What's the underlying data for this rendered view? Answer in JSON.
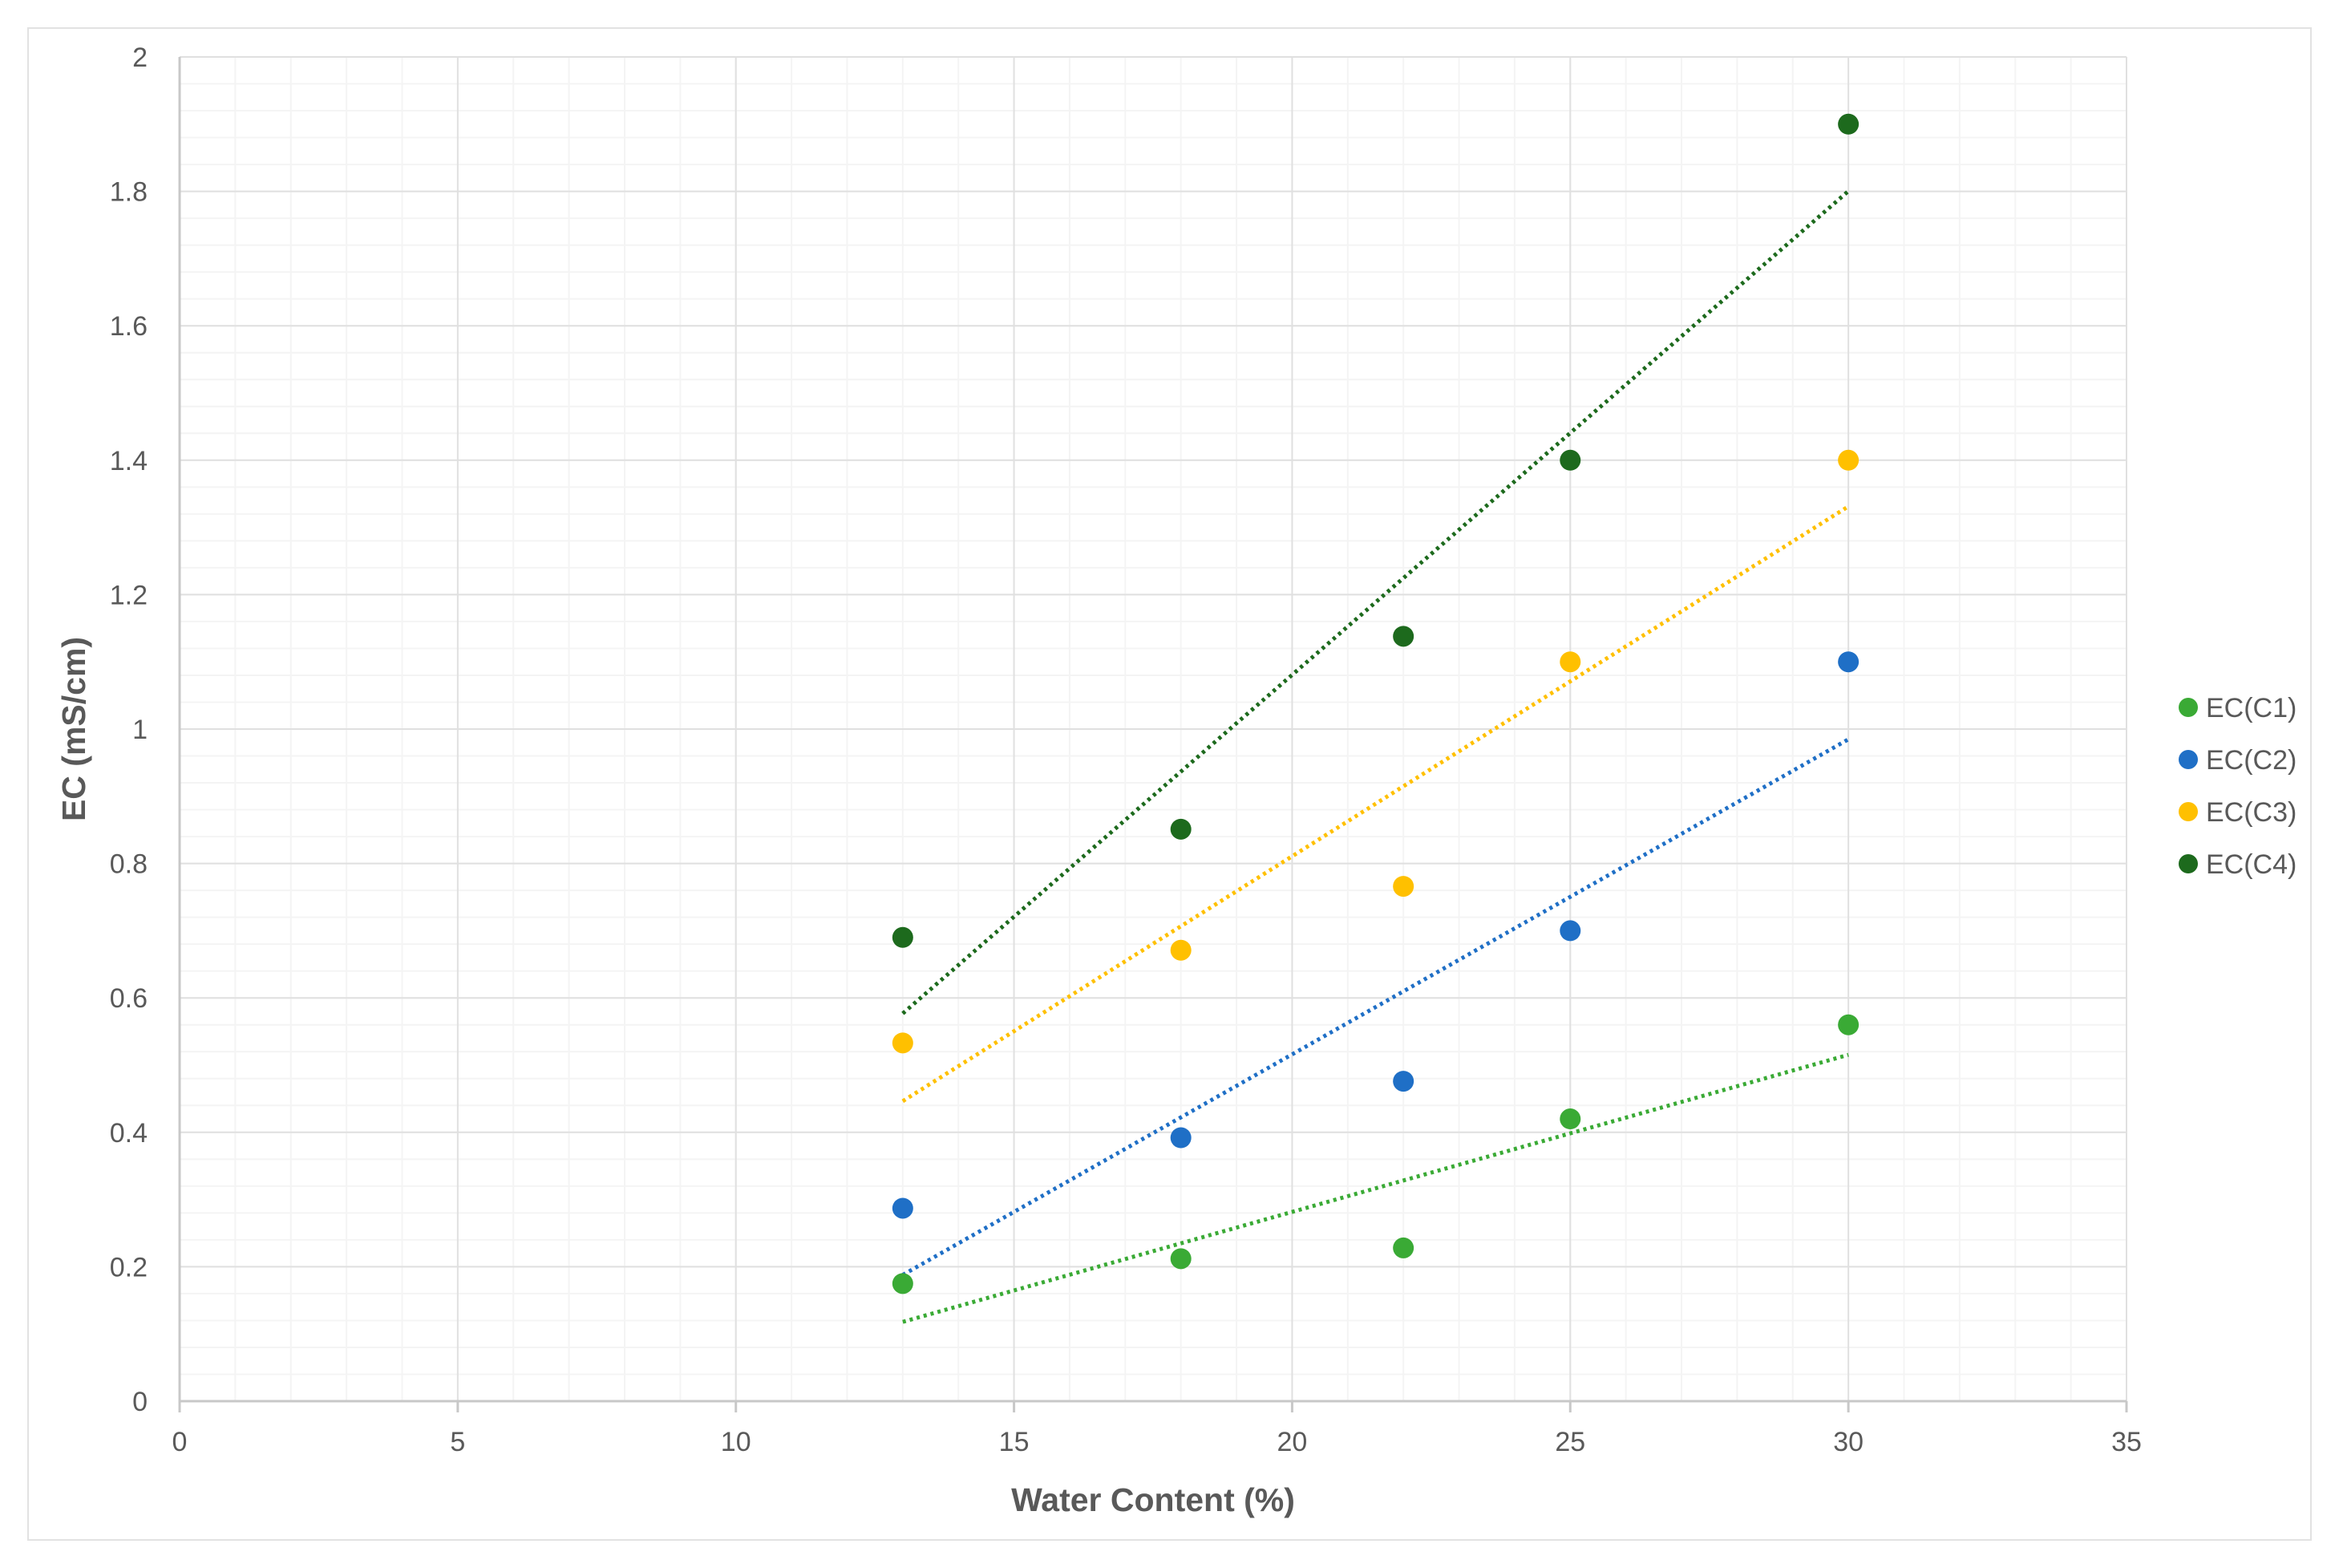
{
  "chart_data": {
    "type": "scatter",
    "xlabel": "Water Content (%)",
    "ylabel": "EC (mS/cm)",
    "xlim": [
      0,
      35
    ],
    "ylim": [
      0,
      2
    ],
    "x_ticks": [
      0,
      5,
      10,
      15,
      20,
      25,
      30,
      35
    ],
    "y_ticks": [
      0,
      0.2,
      0.4,
      0.6,
      0.8,
      1,
      1.2,
      1.4,
      1.6,
      1.8,
      2
    ],
    "x_tick_labels": [
      "0",
      "5",
      "10",
      "15",
      "20",
      "25",
      "30",
      "35"
    ],
    "y_tick_labels": [
      "0",
      "0.2",
      "0.4",
      "0.6",
      "0.8",
      "1",
      "1.2",
      "1.4",
      "1.6",
      "1.8",
      "2"
    ],
    "grid": true,
    "minor_grid": true,
    "legend_position": "right",
    "trendline": "linear, dotted",
    "series": [
      {
        "name": "EC(C1)",
        "color": "#3aaa35",
        "x": [
          13,
          18,
          22,
          25,
          30
        ],
        "y": [
          0.175,
          0.212,
          0.228,
          0.42,
          0.56
        ]
      },
      {
        "name": "EC(C2)",
        "color": "#1f6fc6",
        "x": [
          13,
          18,
          22,
          25,
          30
        ],
        "y": [
          0.287,
          0.392,
          0.476,
          0.7,
          1.1
        ]
      },
      {
        "name": "EC(C3)",
        "color": "#ffc000",
        "x": [
          13,
          18,
          22,
          25,
          30
        ],
        "y": [
          0.533,
          0.671,
          0.766,
          1.1,
          1.4
        ]
      },
      {
        "name": "EC(C4)",
        "color": "#1d6a1d",
        "x": [
          13,
          18,
          22,
          25,
          30
        ],
        "y": [
          0.69,
          0.851,
          1.138,
          1.4,
          1.9
        ]
      }
    ]
  }
}
